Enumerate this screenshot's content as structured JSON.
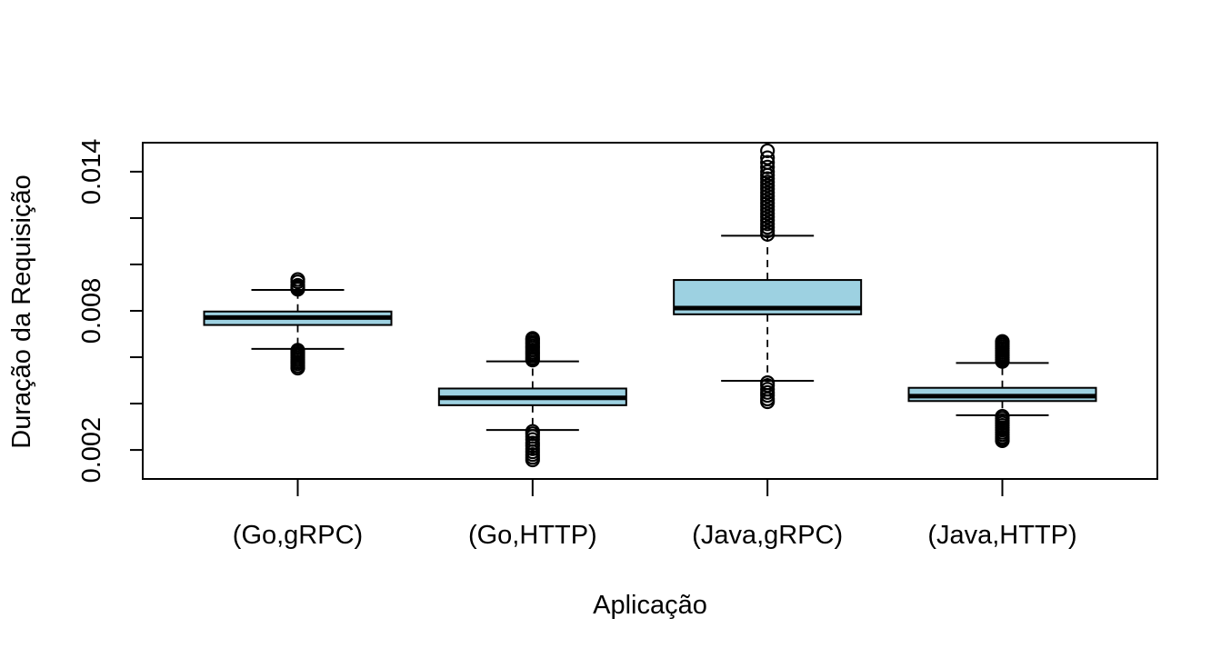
{
  "chart_data": {
    "type": "boxplot",
    "title": "",
    "xlabel": "Aplicação",
    "ylabel": "Duração da Requisição",
    "ylim": [
      0.00075,
      0.01525
    ],
    "yticks": [
      0.002,
      0.004,
      0.006,
      0.008,
      0.01,
      0.012,
      0.014
    ],
    "ytick_labels": [
      "0.002",
      "",
      "",
      "0.008",
      "",
      "",
      "0.014"
    ],
    "box_color": "#9dd1e1",
    "categories": [
      "(Go,gRPC)",
      "(Go,HTTP)",
      "(Java,gRPC)",
      "(Java,HTTP)"
    ],
    "boxes": [
      {
        "name": "(Go,gRPC)",
        "whisker_low": 0.00636,
        "q1": 0.00739,
        "median": 0.00771,
        "q3": 0.00797,
        "whisker_high": 0.0089,
        "outliers_high": [
          0.00893,
          0.00898,
          0.00903,
          0.0091,
          0.00925,
          0.00935
        ],
        "outliers_low": [
          0.0063,
          0.00622,
          0.00614,
          0.00605,
          0.00597,
          0.00589,
          0.0058,
          0.00572,
          0.00562,
          0.00553
        ]
      },
      {
        "name": "(Go,HTTP)",
        "whisker_low": 0.00286,
        "q1": 0.00393,
        "median": 0.00425,
        "q3": 0.00465,
        "whisker_high": 0.00582,
        "outliers_high": [
          0.00588,
          0.00596,
          0.00605,
          0.00614,
          0.00622,
          0.00631,
          0.0064,
          0.00648,
          0.00657,
          0.00665,
          0.00674,
          0.00681
        ],
        "outliers_low": [
          0.0028,
          0.0027,
          0.00258,
          0.00245,
          0.0023,
          0.00218,
          0.00205,
          0.00192,
          0.0018,
          0.00168,
          0.00157
        ]
      },
      {
        "name": "(Java,gRPC)",
        "whisker_low": 0.00498,
        "q1": 0.00785,
        "median": 0.00812,
        "q3": 0.00933,
        "whisker_high": 0.01124,
        "outliers_high": [
          0.0113,
          0.01145,
          0.0116,
          0.01175,
          0.0119,
          0.01205,
          0.0122,
          0.01235,
          0.0125,
          0.01265,
          0.0128,
          0.01295,
          0.0131,
          0.01325,
          0.0134,
          0.01355,
          0.0137,
          0.01385,
          0.014,
          0.0142,
          0.0144,
          0.0146,
          0.0149
        ],
        "outliers_low": [
          0.0049,
          0.00478,
          0.00462,
          0.00448,
          0.00435,
          0.0042,
          0.00408
        ]
      },
      {
        "name": "(Java,HTTP)",
        "whisker_low": 0.0035,
        "q1": 0.00411,
        "median": 0.00432,
        "q3": 0.00468,
        "whisker_high": 0.00575,
        "outliers_high": [
          0.00582,
          0.0059,
          0.00598,
          0.00606,
          0.00614,
          0.00622,
          0.0063,
          0.00638,
          0.00646,
          0.00654,
          0.00662,
          0.00668
        ],
        "outliers_low": [
          0.00345,
          0.00336,
          0.00326,
          0.00316,
          0.00306,
          0.00296,
          0.00286,
          0.00276,
          0.00266,
          0.00256,
          0.00248,
          0.0024
        ]
      }
    ]
  }
}
